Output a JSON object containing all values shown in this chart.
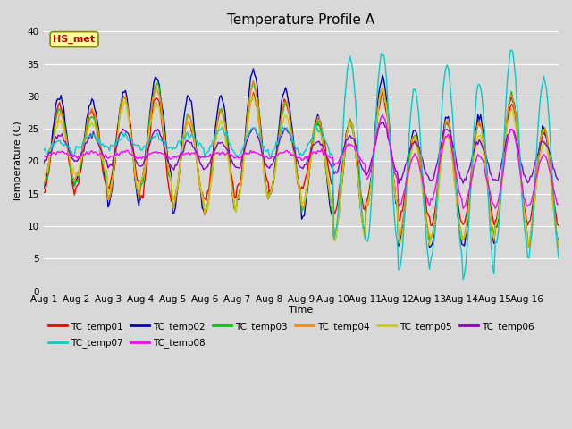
{
  "title": "Temperature Profile A",
  "xlabel": "Time",
  "ylabel": "Temperature (C)",
  "ylim": [
    0,
    40
  ],
  "series_colors": {
    "TC_temp01": "#ff0000",
    "TC_temp02": "#0000bb",
    "TC_temp03": "#00cc00",
    "TC_temp04": "#ff8800",
    "TC_temp05": "#cccc00",
    "TC_temp06": "#8800cc",
    "TC_temp07": "#00cccc",
    "TC_temp08": "#ff00ff"
  },
  "annotation_text": "HS_met",
  "annotation_color": "#cc0000",
  "annotation_bg": "#ffff99",
  "x_tick_labels": [
    "Aug 1",
    "Aug 2",
    "Aug 3",
    "Aug 4",
    "Aug 5",
    "Aug 6",
    "Aug 7",
    "Aug 8",
    "Aug 9",
    "Aug 10",
    "Aug 11",
    "Aug 12",
    "Aug 13",
    "Aug 14",
    "Aug 15",
    "Aug 16"
  ],
  "num_days": 16,
  "points_per_day": 24,
  "yticks": [
    0,
    5,
    10,
    15,
    20,
    25,
    30,
    35,
    40
  ],
  "bg_color": "#d8d8d8",
  "legend_ncol_row1": 6,
  "legend_ncol_row2": 2
}
